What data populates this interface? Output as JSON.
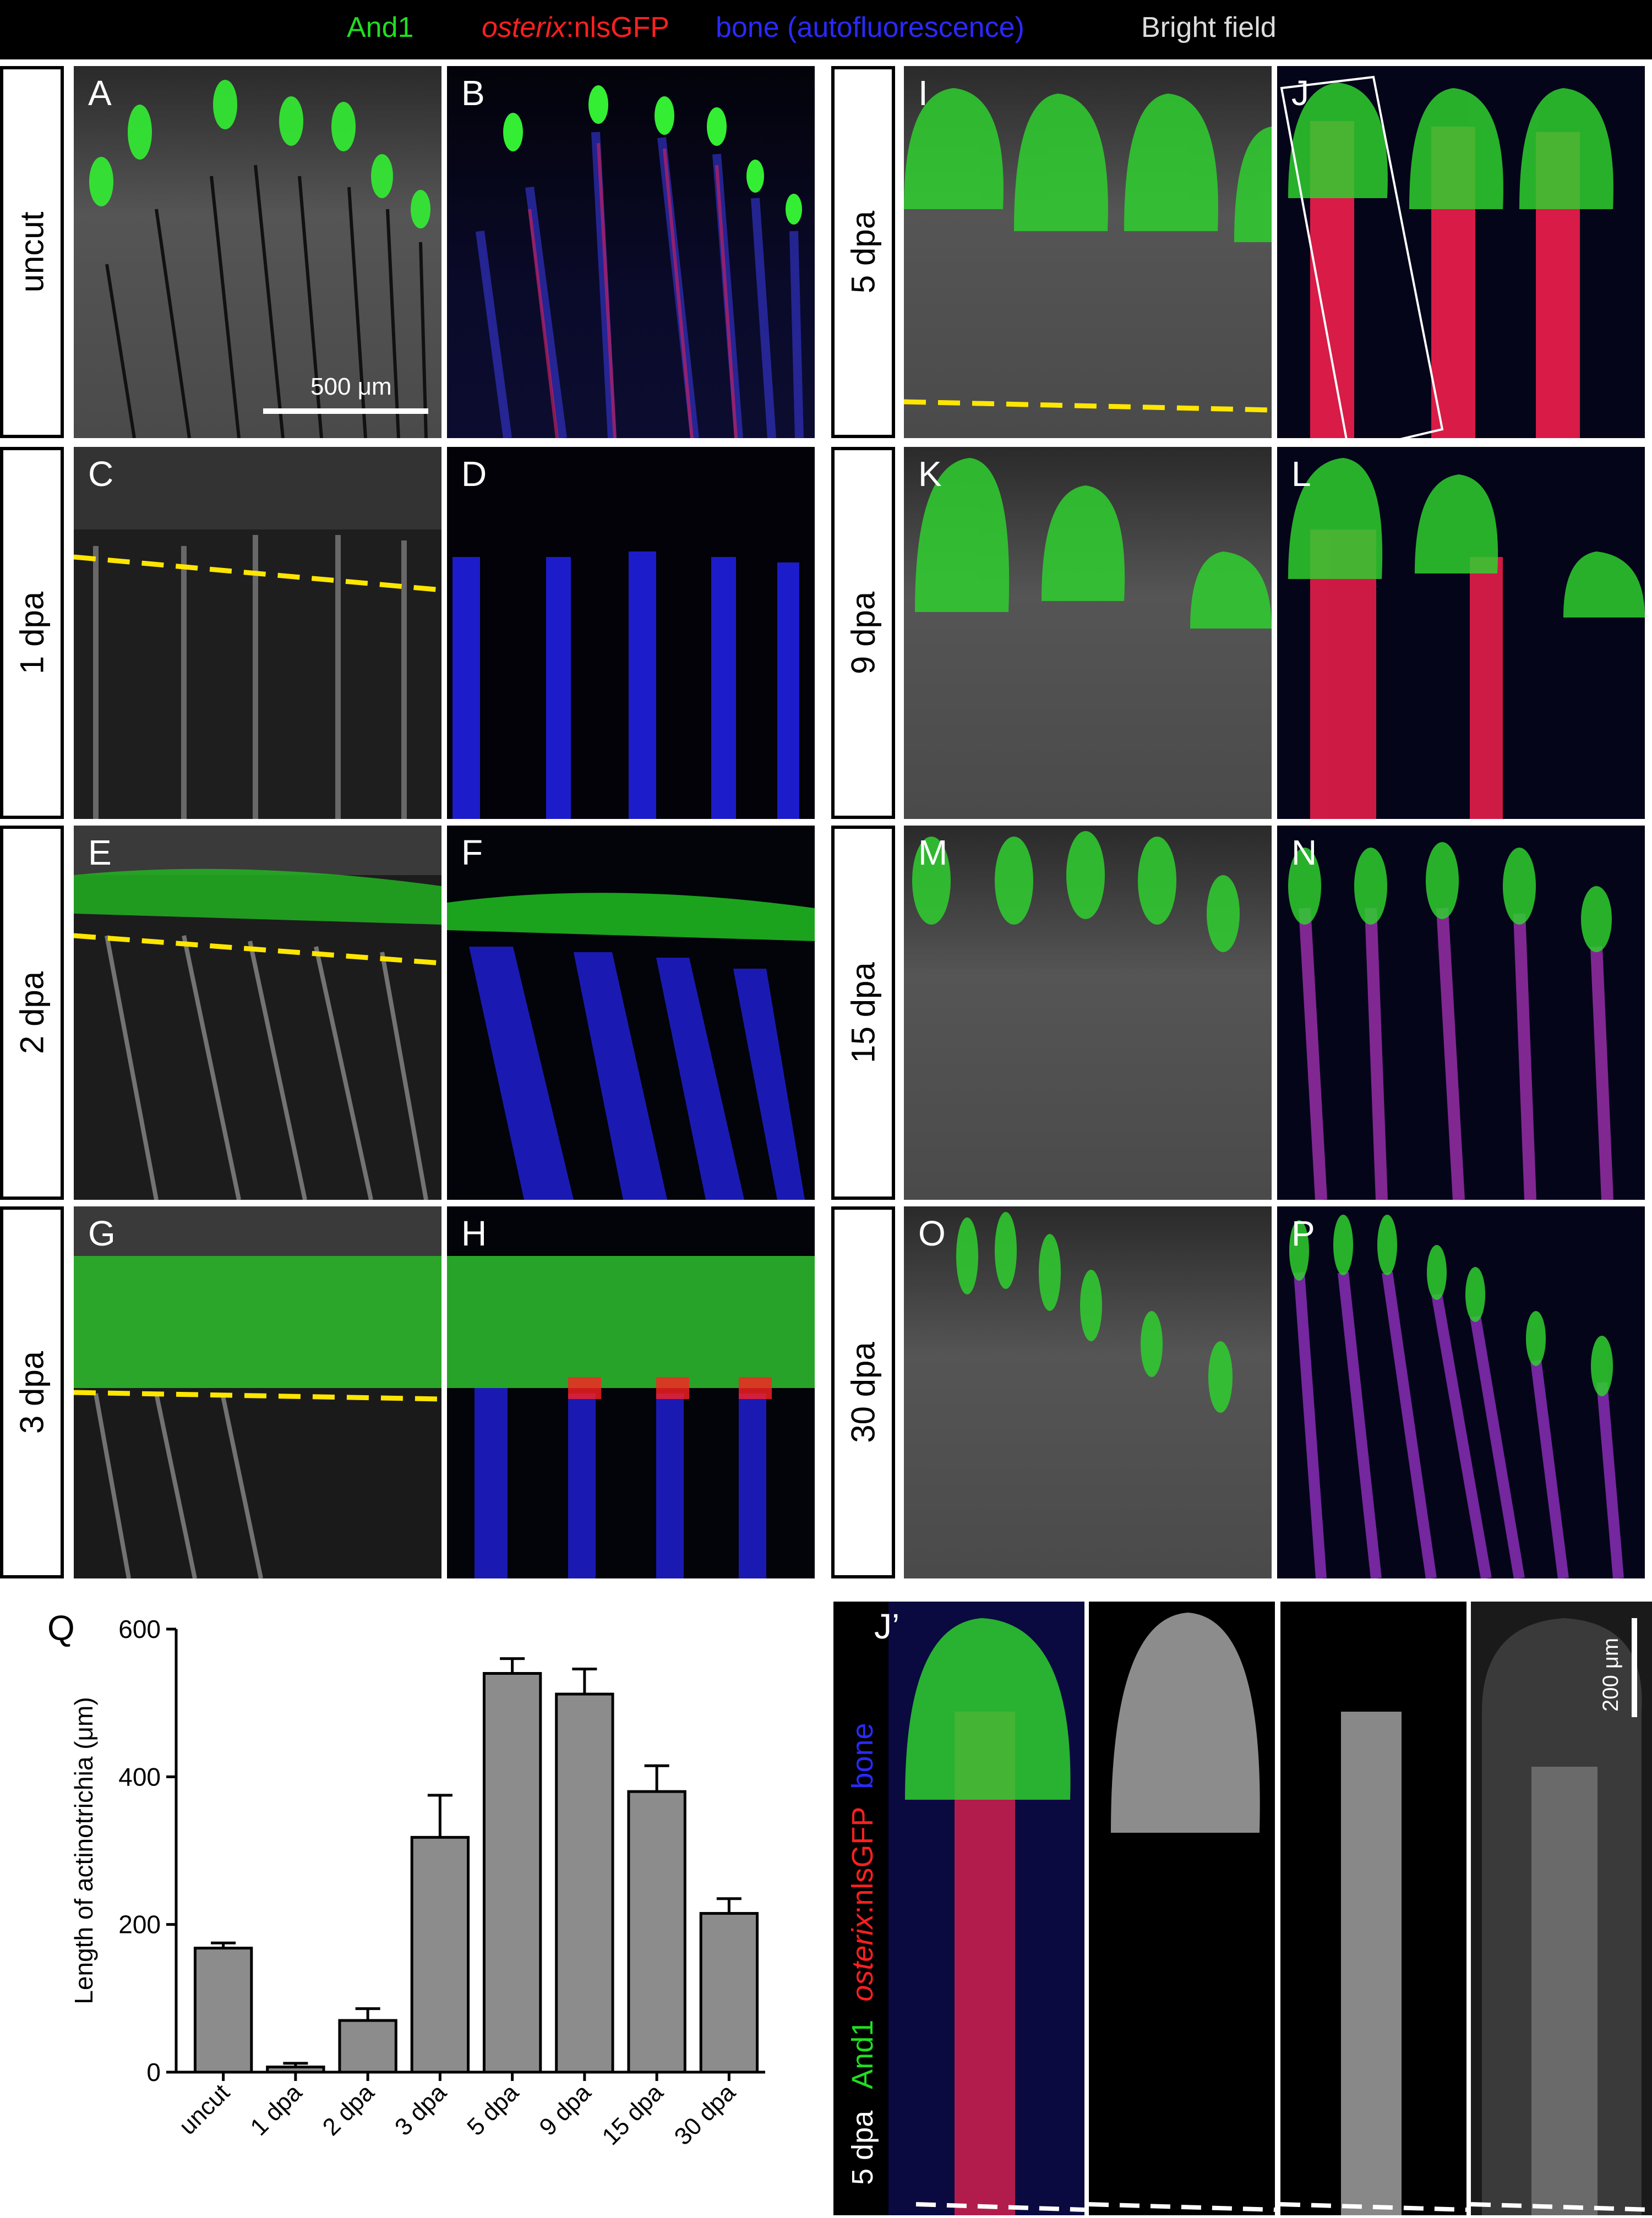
{
  "legend": {
    "and1": "And1",
    "osterix_italic": "osterix",
    "osterix_suffix": ":nlsGFP",
    "bone": "bone (autofluorescence)",
    "bright_field": "Bright field",
    "colors": {
      "and1": "#22dd22",
      "osterix": "#ff2020",
      "bone": "#2a2aff",
      "bright_field": "#dddddd"
    }
  },
  "rows_left": [
    {
      "label": "uncut",
      "bf_panel": "A",
      "fl_panel": "B"
    },
    {
      "label": "1 dpa",
      "bf_panel": "C",
      "fl_panel": "D"
    },
    {
      "label": "2 dpa",
      "bf_panel": "E",
      "fl_panel": "F"
    },
    {
      "label": "3 dpa",
      "bf_panel": "G",
      "fl_panel": "H"
    }
  ],
  "rows_right": [
    {
      "label": "5 dpa",
      "bf_panel": "I",
      "fl_panel": "J"
    },
    {
      "label": "9 dpa",
      "bf_panel": "K",
      "fl_panel": "L"
    },
    {
      "label": "15 dpa",
      "bf_panel": "M",
      "fl_panel": "N"
    },
    {
      "label": "30 dpa",
      "bf_panel": "O",
      "fl_panel": "P"
    }
  ],
  "scalebar_main": "500 μm",
  "jprime": {
    "label": "J’",
    "side_legend": {
      "time": "5 dpa",
      "and1": "And1",
      "osterix_italic": "osterix",
      "osterix_suffix": ":nlsGFP",
      "bone": "bone"
    },
    "scalebar": "200 μm"
  },
  "chart_data": {
    "type": "bar",
    "panel_label": "Q",
    "categories": [
      "uncut",
      "1 dpa",
      "2 dpa",
      "3 dpa",
      "5 dpa",
      "9 dpa",
      "15 dpa",
      "30 dpa"
    ],
    "values": [
      168,
      7,
      70,
      318,
      540,
      512,
      380,
      215
    ],
    "errors": [
      7,
      5,
      16,
      57,
      20,
      34,
      35,
      20
    ],
    "ylabel": "Length of actinotrichia (μm)",
    "xlabel": "",
    "ylim": [
      0,
      600
    ],
    "yticks": [
      0,
      200,
      400,
      600
    ],
    "bar_color": "#8c8c8c",
    "grid": false
  }
}
